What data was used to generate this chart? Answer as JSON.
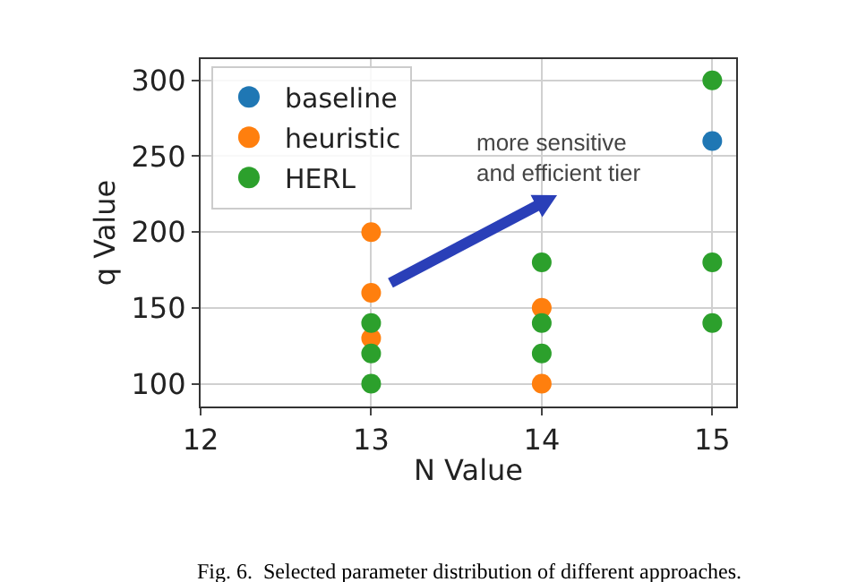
{
  "chart_data": {
    "type": "scatter",
    "xlabel": "N Value",
    "ylabel": "q Value",
    "xlim": [
      12,
      15.14
    ],
    "xticks": [
      12,
      13,
      14,
      15
    ],
    "ylim": [
      85,
      314
    ],
    "yticks": [
      100,
      150,
      200,
      250,
      300
    ],
    "grid": true,
    "legend": "top left",
    "marker": "circle",
    "series": [
      {
        "name": "baseline",
        "color": "#1f77b4",
        "x": [
          15
        ],
        "values": [
          260
        ]
      },
      {
        "name": "heuristic",
        "color": "#ff7f0e",
        "x": [
          13,
          13,
          13,
          14,
          14
        ],
        "values": [
          200,
          160,
          130,
          150,
          100
        ]
      },
      {
        "name": "HERL",
        "color": "#2ca02c",
        "x": [
          13,
          13,
          13,
          14,
          14,
          14,
          15,
          15,
          15
        ],
        "values": [
          140,
          120,
          100,
          180,
          140,
          120,
          300,
          180,
          140
        ]
      }
    ],
    "annotations": [
      "more sensitive\nand efficient tier",
      "Fig. 6.  Selected parameter distribution of different approaches."
    ]
  }
}
